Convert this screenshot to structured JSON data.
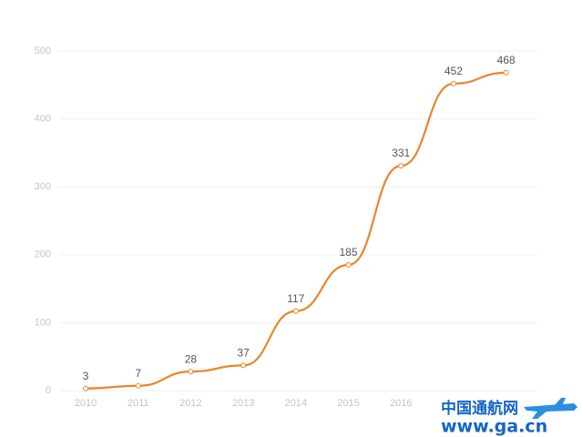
{
  "chart_data": {
    "type": "line",
    "categories": [
      "2010",
      "2011",
      "2012",
      "2013",
      "2014",
      "2015",
      "2016",
      null,
      null
    ],
    "values": [
      3,
      7,
      28,
      37,
      117,
      185,
      331,
      452,
      468
    ],
    "color": "#e8862a",
    "ylim": [
      0,
      500
    ],
    "yticks": [
      0,
      100,
      200,
      300,
      400,
      500
    ],
    "grid": true,
    "smooth": true
  },
  "watermark": {
    "name": "中国通航网",
    "url": "www.ga.cn"
  }
}
